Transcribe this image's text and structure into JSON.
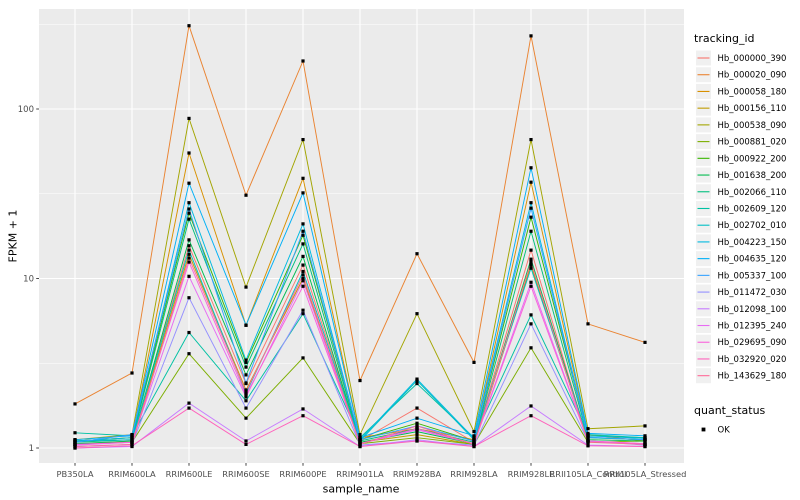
{
  "figure": {
    "bg": "#FFFFFF",
    "panel_bg": "#EBEBEB",
    "grid_color": "#FFFFFF",
    "tick_label_color": "#4D4D4D",
    "text_color": "#000000",
    "point_color": "#000000",
    "legend_key_bg": "#F0F0F0"
  },
  "chart_data": {
    "type": "line",
    "title": "",
    "xlabel": "sample_name",
    "ylabel": "FPKM + 1",
    "y_scale": "log10",
    "y_ticks": [
      1,
      10,
      100
    ],
    "y_minor_ticks": [
      3.162,
      31.62,
      316.2
    ],
    "ylim_px_note": "log scale, 1 decade = 169.5px",
    "legend_position": "right",
    "legend_titles": {
      "tracking": "tracking_id",
      "quant": "quant_status"
    },
    "quant_legend": {
      "label": "OK",
      "shape": "square",
      "color": "#000000"
    },
    "categories": [
      "PB350LA",
      "RRIM600LA",
      "RRIM600LE",
      "RRIM600SE",
      "RRIM600PE",
      "RRIM901LA",
      "RRIM928BA",
      "RRIM928LA",
      "RRIM928LE",
      "RRII105LA_Control",
      "RRII105LA_Stressed"
    ],
    "series": [
      {
        "name": "Hb_000000_390",
        "color": "#F8766D",
        "values": [
          1.05,
          1.1,
          15.6,
          2.4,
          12.0,
          1.1,
          1.72,
          1.08,
          14.7,
          1.1,
          1.05
        ]
      },
      {
        "name": "Hb_000020_090",
        "color": "#EA8331",
        "values": [
          1.82,
          2.77,
          310.0,
          31.0,
          192.0,
          2.5,
          14.0,
          3.2,
          270.0,
          5.4,
          4.2
        ]
      },
      {
        "name": "Hb_000058_180",
        "color": "#D89000",
        "values": [
          1.1,
          1.15,
          55.0,
          5.3,
          39.0,
          1.15,
          1.3,
          1.12,
          37.0,
          1.2,
          1.1
        ]
      },
      {
        "name": "Hb_000156_110",
        "color": "#C09B00",
        "values": [
          1.05,
          1.08,
          13.9,
          2.2,
          10.0,
          1.08,
          1.2,
          1.05,
          12.0,
          1.1,
          1.05
        ]
      },
      {
        "name": "Hb_000538_090",
        "color": "#A3A500",
        "values": [
          1.12,
          1.2,
          88.0,
          8.9,
          66.0,
          1.2,
          6.2,
          1.25,
          66.0,
          1.3,
          1.35
        ]
      },
      {
        "name": "Hb_000881_020",
        "color": "#7CAE00",
        "values": [
          1.05,
          1.08,
          3.6,
          1.5,
          3.4,
          1.06,
          1.15,
          1.05,
          3.9,
          1.08,
          1.1
        ]
      },
      {
        "name": "Hb_000922_200",
        "color": "#39B600",
        "values": [
          1.1,
          1.15,
          24.3,
          3.2,
          18.0,
          1.12,
          1.4,
          1.1,
          23.0,
          1.18,
          1.15
        ]
      },
      {
        "name": "Hb_001638_200",
        "color": "#00BB4E",
        "values": [
          1.06,
          1.1,
          16.9,
          2.7,
          13.5,
          1.08,
          1.25,
          1.06,
          13.0,
          1.12,
          1.1
        ]
      },
      {
        "name": "Hb_002066_110",
        "color": "#00BF7D",
        "values": [
          1.08,
          1.12,
          22.4,
          3.0,
          16.0,
          1.1,
          1.3,
          1.08,
          19.0,
          1.15,
          1.12
        ]
      },
      {
        "name": "Hb_002609_120",
        "color": "#00C1A3",
        "values": [
          1.23,
          1.18,
          4.8,
          1.9,
          6.2,
          1.15,
          2.4,
          1.15,
          6.1,
          1.2,
          1.15
        ]
      },
      {
        "name": "Hb_002702_010",
        "color": "#00BFC4",
        "values": [
          1.1,
          1.12,
          14.7,
          2.1,
          11.0,
          1.1,
          2.5,
          1.12,
          11.5,
          1.15,
          1.12
        ]
      },
      {
        "name": "Hb_004223_150",
        "color": "#00BAE0",
        "values": [
          1.1,
          1.15,
          28.0,
          3.3,
          21.0,
          1.12,
          2.55,
          1.14,
          28.0,
          1.18,
          1.14
        ]
      },
      {
        "name": "Hb_004635_120",
        "color": "#00B0F6",
        "values": [
          1.12,
          1.18,
          36.5,
          5.3,
          32.0,
          1.15,
          1.5,
          1.18,
          45.0,
          1.22,
          1.18
        ]
      },
      {
        "name": "Hb_005337_100",
        "color": "#35A2FF",
        "values": [
          1.08,
          1.2,
          25.7,
          2.42,
          19.0,
          1.12,
          1.35,
          1.1,
          26.0,
          1.16,
          1.12
        ]
      },
      {
        "name": "Hb_011472_030",
        "color": "#9590FF",
        "values": [
          1.02,
          1.05,
          7.7,
          1.72,
          6.5,
          1.04,
          1.1,
          1.04,
          5.4,
          1.1,
          1.04
        ]
      },
      {
        "name": "Hb_012098_100",
        "color": "#C77CFF",
        "values": [
          1.0,
          1.02,
          1.84,
          1.1,
          1.7,
          1.02,
          1.12,
          1.02,
          1.77,
          1.04,
          1.02
        ]
      },
      {
        "name": "Hb_012395_240",
        "color": "#E76BF3",
        "values": [
          1.04,
          1.08,
          10.3,
          2.0,
          9.7,
          1.06,
          1.28,
          1.06,
          9.5,
          1.1,
          1.06
        ]
      },
      {
        "name": "Hb_029695_090",
        "color": "#FA62DB",
        "values": [
          1.05,
          1.08,
          12.5,
          2.05,
          9.0,
          1.06,
          1.3,
          1.06,
          9.0,
          1.1,
          1.06
        ]
      },
      {
        "name": "Hb_032920_020",
        "color": "#FF62BC",
        "values": [
          1.0,
          1.03,
          1.72,
          1.05,
          1.55,
          1.02,
          1.1,
          1.02,
          1.55,
          1.03,
          1.02
        ]
      },
      {
        "name": "Hb_143629_180",
        "color": "#FF6A98",
        "values": [
          1.02,
          1.05,
          13.2,
          2.15,
          10.5,
          1.05,
          1.35,
          1.05,
          12.5,
          1.08,
          1.05
        ]
      }
    ]
  }
}
